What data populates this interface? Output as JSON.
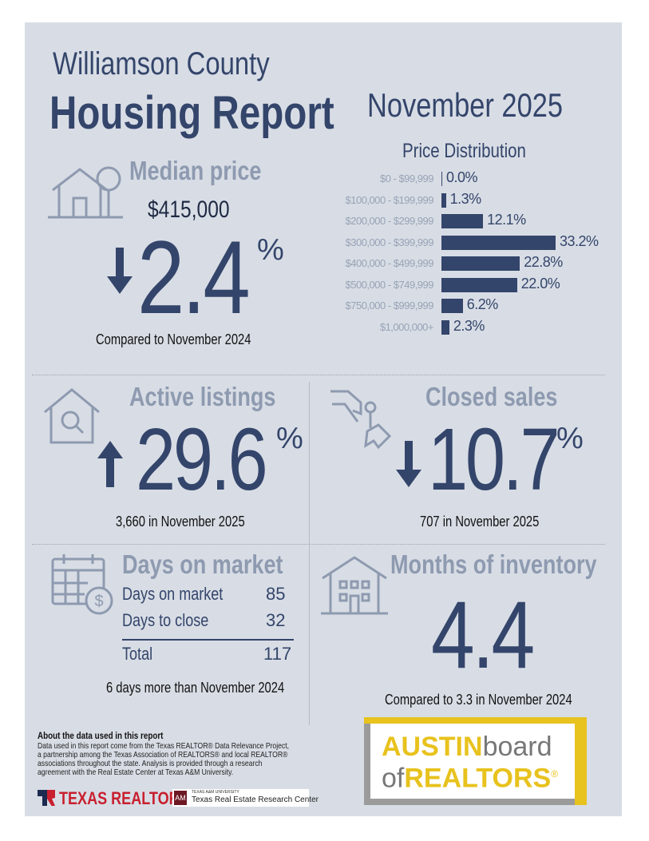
{
  "header": {
    "county": "Williamson County",
    "title": "Housing Report",
    "period": "November 2025"
  },
  "median_price": {
    "label": "Median price",
    "value": "$415,000",
    "change": "2.4",
    "pct": "%",
    "direction": "down",
    "compare": "Compared to November 2024"
  },
  "chart_data": {
    "type": "bar",
    "title": "Price Distribution",
    "orientation": "horizontal",
    "categories": [
      "$0 - $99,999",
      "$100,000 - $199,999",
      "$200,000 - $299,999",
      "$300,000 - $399,999",
      "$400,000 - $499,999",
      "$500,000 - $749,999",
      "$750,000 - $999,999",
      "$1,000,000+"
    ],
    "values": [
      0.0,
      1.3,
      12.1,
      33.2,
      22.8,
      22.0,
      6.2,
      2.3
    ],
    "labels": [
      "0.0%",
      "1.3%",
      "12.1%",
      "33.2%",
      "22.8%",
      "22.0%",
      "6.2%",
      "2.3%"
    ],
    "unit": "%"
  },
  "active_listings": {
    "label": "Active listings",
    "change": "29.6",
    "pct": "%",
    "direction": "up",
    "note": "3,660 in November 2025"
  },
  "closed_sales": {
    "label": "Closed sales",
    "change": "10.7",
    "pct": "%",
    "direction": "down",
    "note": "707 in November 2025"
  },
  "days_on_market": {
    "label": "Days on market",
    "rows": [
      {
        "label": "Days on market",
        "value": "85"
      },
      {
        "label": "Days to close",
        "value": "32"
      }
    ],
    "total_label": "Total",
    "total_value": "117",
    "note": "6 days more than November 2024"
  },
  "months_inventory": {
    "label": "Months of inventory",
    "value": "4.4",
    "note": "Compared to 3.3 in November 2024"
  },
  "footer": {
    "about_title": "About the data used in this report",
    "about_text": "Data used in this report come from the Texas REALTOR® Data Relevance Project, a partnership among the Texas Association of REALTORS® and local REALTOR® associations throughout the state. Analysis is provided through a research agreement with the Real Estate Center at Texas A&M University.",
    "texas_realtors": "TEXAS REALTORS",
    "tamu_small": "TEXAS A&M UNIVERSITY",
    "tamu_center": "Texas Real Estate Research Center",
    "abor_austin": "AUSTIN",
    "abor_board": "board",
    "abor_of": "of",
    "abor_realtors": "REALTORS",
    "abor_reg": "®"
  },
  "colors": {
    "navy": "#34456b",
    "light": "#8e9ab0",
    "bg": "#d8dde5",
    "gold": "#e8c21d"
  }
}
